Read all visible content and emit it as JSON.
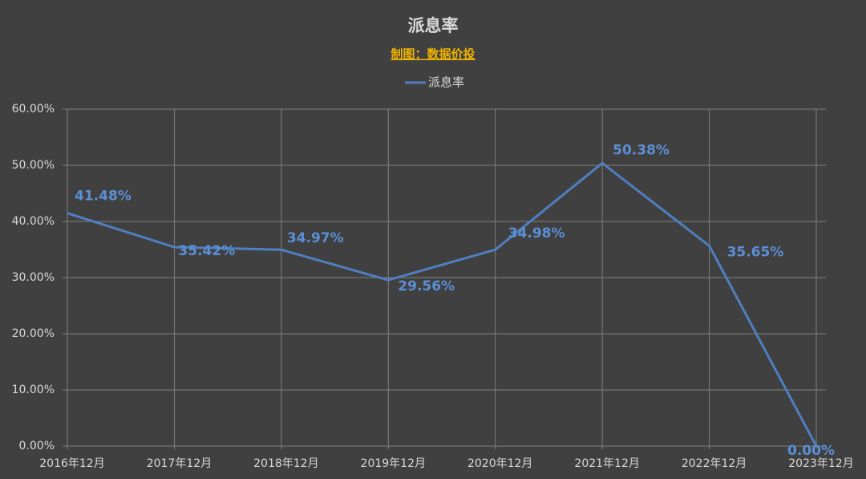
{
  "chart_data": {
    "type": "line",
    "title": "派息率",
    "subtitle": "制图：数据价投",
    "categories": [
      "2016年12月",
      "2017年12月",
      "2018年12月",
      "2019年12月",
      "2020年12月",
      "2021年12月",
      "2022年12月",
      "2023年12月"
    ],
    "series": [
      {
        "name": "派息率",
        "color": "#4f7fc0",
        "values": [
          41.48,
          35.42,
          34.97,
          29.56,
          34.98,
          50.38,
          35.65,
          0.0
        ],
        "value_labels": [
          "41.48%",
          "35.42%",
          "34.97%",
          "29.56%",
          "34.98%",
          "50.38%",
          "35.65%",
          "0.00%"
        ]
      }
    ],
    "ylim": [
      0,
      60
    ],
    "yticks": [
      {
        "value": 0,
        "label": "0.00%"
      },
      {
        "value": 10,
        "label": "10.00%"
      },
      {
        "value": 20,
        "label": "20.00%"
      },
      {
        "value": 30,
        "label": "30.00%"
      },
      {
        "value": 40,
        "label": "40.00%"
      },
      {
        "value": 50,
        "label": "50.00%"
      },
      {
        "value": 60,
        "label": "60.00%"
      }
    ],
    "grid": true,
    "legend": "top"
  }
}
